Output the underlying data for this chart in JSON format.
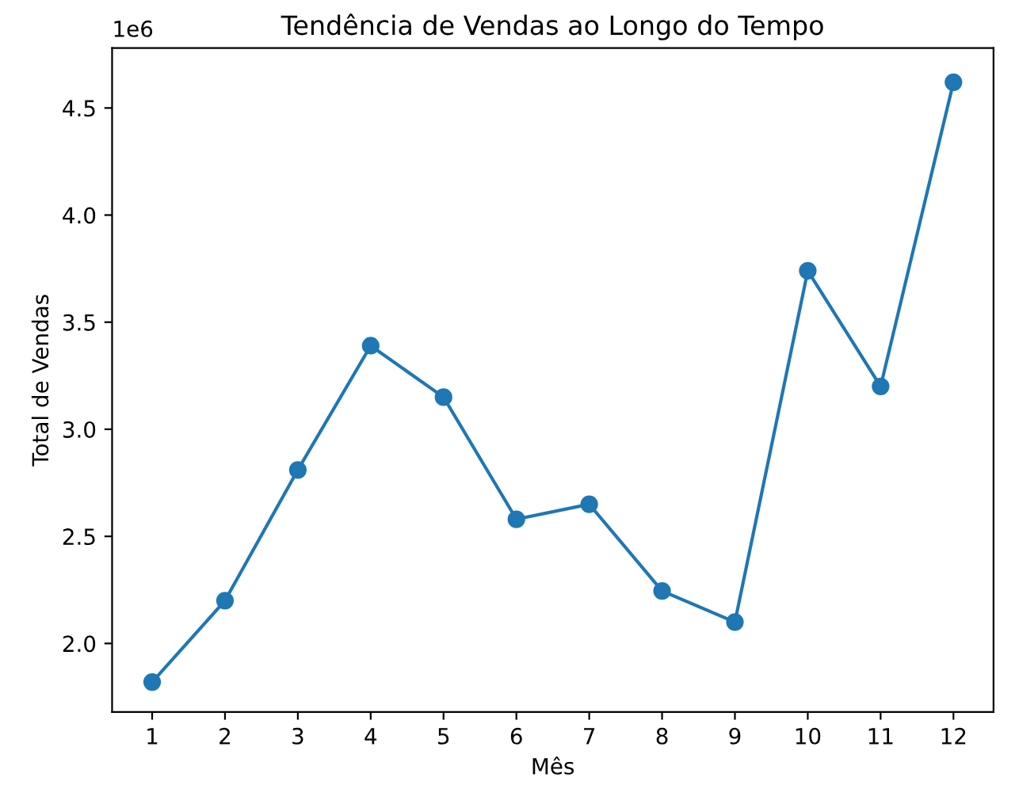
{
  "chart_data": {
    "type": "line",
    "title": "Tendência de Vendas ao Longo do Tempo",
    "xlabel": "Mês",
    "ylabel": "Total de Vendas",
    "annotations": [
      "1e6"
    ],
    "x": [
      1,
      2,
      3,
      4,
      5,
      6,
      7,
      8,
      9,
      10,
      11,
      12
    ],
    "series": [
      {
        "color": "#1f77b4",
        "values": [
          1.82,
          2.2,
          2.81,
          3.39,
          3.15,
          2.58,
          2.65,
          2.245,
          2.1,
          3.74,
          3.2,
          4.62
        ]
      }
    ],
    "marker": "circle",
    "line_style": "solid",
    "grid": false,
    "legend": false,
    "xlim": [
      0.45,
      12.55
    ],
    "xticks": [
      1,
      2,
      3,
      4,
      5,
      6,
      7,
      8,
      9,
      10,
      11,
      12
    ],
    "ylim": [
      1.68,
      4.78
    ],
    "yticks": [
      {
        "value": 2,
        "label": "2.0"
      },
      2.5,
      {
        "value": 3,
        "label": "3.0"
      },
      3.5,
      {
        "value": 4,
        "label": "4.0"
      },
      4.5
    ]
  }
}
